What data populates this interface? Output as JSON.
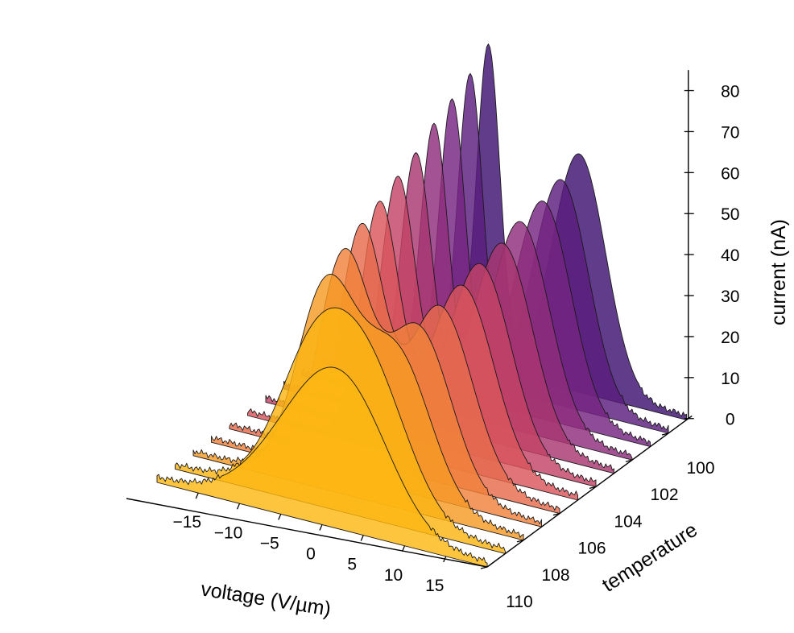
{
  "chart_data": {
    "type": "area",
    "xlabel": "voltage (V/µm)",
    "ylabel": "temperature",
    "zlabel": "current (nA)",
    "x_ticks": [
      "−15",
      "−10",
      "−5",
      "0",
      "5",
      "10",
      "15"
    ],
    "x_tick_values": [
      -15,
      -10,
      -5,
      0,
      5,
      10,
      15
    ],
    "xlim": [
      -20,
      20
    ],
    "y_ticks": [
      "100",
      "102",
      "104",
      "106",
      "108",
      "110"
    ],
    "y_tick_values": [
      100,
      102,
      104,
      106,
      108,
      110
    ],
    "ylim": [
      99,
      110
    ],
    "z_ticks": [
      "0",
      "10",
      "20",
      "30",
      "40",
      "50",
      "60",
      "70",
      "80"
    ],
    "z_tick_values": [
      0,
      10,
      20,
      30,
      40,
      50,
      60,
      70,
      80
    ],
    "zlim": [
      0,
      85
    ],
    "colormap": "inferno",
    "colors": [
      "#3d1170",
      "#5a1d7c",
      "#752581",
      "#8f2d7c",
      "#a83670",
      "#c34367",
      "#d9565c",
      "#e76b4d",
      "#f0813b",
      "#f79b24",
      "#fbb414",
      "#fcb712"
    ],
    "series": [
      {
        "temperature": 99,
        "peaks": [
          {
            "center": -4,
            "height": 78,
            "width": 1.4
          },
          {
            "center": 7,
            "height": 57,
            "width": 3.2
          }
        ]
      },
      {
        "temperature": 100,
        "peaks": [
          {
            "center": -4,
            "height": 74,
            "width": 1.5
          },
          {
            "center": 7,
            "height": 54,
            "width": 3.3
          }
        ]
      },
      {
        "temperature": 101,
        "peaks": [
          {
            "center": -4,
            "height": 71,
            "width": 1.6
          },
          {
            "center": 7,
            "height": 52,
            "width": 3.4
          }
        ]
      },
      {
        "temperature": 102,
        "peaks": [
          {
            "center": -4,
            "height": 68,
            "width": 1.7
          },
          {
            "center": 6.5,
            "height": 50,
            "width": 3.5
          }
        ]
      },
      {
        "temperature": 103,
        "peaks": [
          {
            "center": -4,
            "height": 64,
            "width": 1.9
          },
          {
            "center": 6.5,
            "height": 48,
            "width": 3.6
          }
        ]
      },
      {
        "temperature": 104,
        "peaks": [
          {
            "center": -4,
            "height": 61,
            "width": 2.1
          },
          {
            "center": 6,
            "height": 46,
            "width": 3.7
          }
        ]
      },
      {
        "temperature": 105,
        "peaks": [
          {
            "center": -4,
            "height": 58,
            "width": 2.3
          },
          {
            "center": 6,
            "height": 44,
            "width": 3.8
          }
        ]
      },
      {
        "temperature": 106,
        "peaks": [
          {
            "center": -4,
            "height": 55,
            "width": 2.6
          },
          {
            "center": 5.5,
            "height": 42,
            "width": 3.9
          }
        ]
      },
      {
        "temperature": 107,
        "peaks": [
          {
            "center": -4,
            "height": 51,
            "width": 3.0
          },
          {
            "center": 5,
            "height": 40,
            "width": 4.0
          }
        ]
      },
      {
        "temperature": 108,
        "peaks": [
          {
            "center": -4,
            "height": 46,
            "width": 3.5
          },
          {
            "center": 4.5,
            "height": 37,
            "width": 4.2
          }
        ]
      },
      {
        "temperature": 109,
        "peaks": [
          {
            "center": -3,
            "height": 35,
            "width": 4.5
          },
          {
            "center": 4,
            "height": 30,
            "width": 4.5
          }
        ]
      },
      {
        "temperature": 110,
        "peaks": [
          {
            "center": -1,
            "height": 24,
            "width": 6.0
          },
          {
            "center": 4,
            "height": 18,
            "width": 5.0
          }
        ]
      }
    ]
  }
}
